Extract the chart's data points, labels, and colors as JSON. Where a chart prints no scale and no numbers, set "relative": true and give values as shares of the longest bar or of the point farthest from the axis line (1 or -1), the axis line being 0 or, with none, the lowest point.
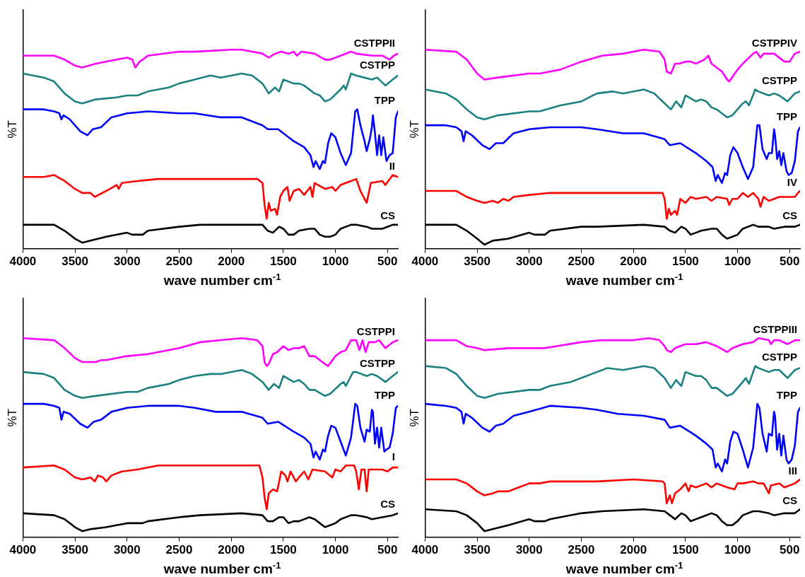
{
  "chart_data": [
    {
      "type": "line",
      "xlabel": "wave number cm$^{-1}$",
      "ylabel": "%T",
      "relative": true,
      "marker": "none",
      "xlim": [
        4000,
        400
      ],
      "xticks": [
        4000,
        3500,
        3000,
        2500,
        2000,
        1500,
        1000,
        500
      ],
      "series": [
        {
          "name": "CSTPPII",
          "color": "#ff00ff",
          "x": [
            4000,
            3800,
            3700,
            3600,
            3500,
            3430,
            3300,
            3100,
            3000,
            2950,
            2920,
            2880,
            2850,
            2800,
            2500,
            2350,
            2000,
            1900,
            1800,
            1700,
            1640,
            1580,
            1520,
            1450,
            1400,
            1370,
            1330,
            1200,
            1100,
            1050,
            950,
            850,
            800,
            650,
            550,
            480,
            440,
            400
          ],
          "values": [
            0.97,
            0.97,
            0.97,
            0.95,
            0.92,
            0.91,
            0.93,
            0.95,
            0.96,
            0.95,
            0.91,
            0.94,
            0.95,
            0.97,
            0.99,
            0.99,
            1.0,
            1.0,
            0.99,
            0.98,
            0.96,
            0.98,
            0.99,
            0.98,
            0.99,
            0.97,
            0.99,
            0.98,
            0.95,
            0.95,
            0.97,
            0.99,
            0.98,
            0.97,
            0.97,
            0.95,
            0.97,
            0.98
          ]
        },
        {
          "name": "CSTPP",
          "color": "#1a8080",
          "x": [
            4000,
            3800,
            3700,
            3600,
            3500,
            3430,
            3300,
            3100,
            3000,
            2900,
            2800,
            2600,
            2500,
            2350,
            2200,
            2100,
            1900,
            1800,
            1700,
            1640,
            1580,
            1540,
            1500,
            1400,
            1350,
            1300,
            1200,
            1150,
            1100,
            1050,
            950,
            920,
            900,
            850,
            800,
            650,
            600,
            520,
            450,
            400
          ],
          "values": [
            0.88,
            0.86,
            0.84,
            0.78,
            0.74,
            0.73,
            0.75,
            0.76,
            0.77,
            0.77,
            0.79,
            0.81,
            0.83,
            0.85,
            0.87,
            0.86,
            0.88,
            0.87,
            0.83,
            0.78,
            0.81,
            0.79,
            0.85,
            0.83,
            0.83,
            0.82,
            0.78,
            0.77,
            0.74,
            0.75,
            0.8,
            0.82,
            0.8,
            0.88,
            0.87,
            0.85,
            0.86,
            0.82,
            0.85,
            0.87
          ]
        },
        {
          "name": "TPP",
          "color": "#0000ff",
          "x": [
            4000,
            3800,
            3700,
            3650,
            3630,
            3610,
            3550,
            3450,
            3380,
            3330,
            3250,
            3150,
            3000,
            2800,
            2500,
            2350,
            2100,
            1900,
            1700,
            1650,
            1550,
            1400,
            1300,
            1240,
            1210,
            1190,
            1150,
            1120,
            1100,
            1070,
            1040,
            1000,
            950,
            900,
            850,
            810,
            790,
            760,
            720,
            700,
            670,
            650,
            640,
            620,
            600,
            580,
            560,
            540,
            510,
            480,
            450,
            420,
            400
          ],
          "values": [
            0.7,
            0.7,
            0.69,
            0.68,
            0.65,
            0.67,
            0.65,
            0.59,
            0.57,
            0.6,
            0.61,
            0.66,
            0.68,
            0.69,
            0.68,
            0.68,
            0.66,
            0.66,
            0.62,
            0.6,
            0.6,
            0.54,
            0.51,
            0.47,
            0.41,
            0.44,
            0.4,
            0.44,
            0.43,
            0.53,
            0.58,
            0.56,
            0.48,
            0.42,
            0.48,
            0.69,
            0.7,
            0.62,
            0.54,
            0.49,
            0.55,
            0.61,
            0.67,
            0.58,
            0.47,
            0.57,
            0.47,
            0.56,
            0.44,
            0.47,
            0.48,
            0.66,
            0.69
          ]
        },
        {
          "name": "II",
          "color": "#ff0000",
          "x": [
            4000,
            3800,
            3700,
            3600,
            3500,
            3430,
            3350,
            3310,
            3200,
            3100,
            3080,
            3050,
            2900,
            2700,
            2350,
            2000,
            1750,
            1700,
            1680,
            1660,
            1640,
            1620,
            1580,
            1560,
            1530,
            1500,
            1460,
            1440,
            1400,
            1350,
            1300,
            1240,
            1220,
            1200,
            1100,
            1030,
            1000,
            950,
            850,
            800,
            760,
            700,
            660,
            550,
            520,
            450,
            400
          ],
          "values": [
            0.36,
            0.36,
            0.37,
            0.34,
            0.3,
            0.28,
            0.28,
            0.26,
            0.29,
            0.32,
            0.3,
            0.33,
            0.34,
            0.35,
            0.35,
            0.35,
            0.35,
            0.33,
            0.22,
            0.15,
            0.23,
            0.19,
            0.2,
            0.17,
            0.26,
            0.29,
            0.31,
            0.24,
            0.29,
            0.3,
            0.27,
            0.31,
            0.26,
            0.33,
            0.3,
            0.31,
            0.29,
            0.32,
            0.34,
            0.35,
            0.29,
            0.23,
            0.33,
            0.34,
            0.32,
            0.37,
            0.36
          ]
        },
        {
          "name": "CS",
          "color": "#000000",
          "x": [
            4000,
            3700,
            3600,
            3500,
            3430,
            3350,
            3200,
            3000,
            2950,
            2900,
            2850,
            2800,
            2500,
            2300,
            1900,
            1700,
            1650,
            1600,
            1540,
            1500,
            1450,
            1400,
            1350,
            1250,
            1200,
            1150,
            1100,
            1050,
            1000,
            950,
            850,
            800,
            700,
            650,
            550,
            450,
            400
          ],
          "values": [
            0.12,
            0.12,
            0.09,
            0.05,
            0.03,
            0.04,
            0.06,
            0.08,
            0.07,
            0.07,
            0.07,
            0.09,
            0.11,
            0.12,
            0.12,
            0.12,
            0.09,
            0.08,
            0.11,
            0.1,
            0.07,
            0.07,
            0.09,
            0.1,
            0.1,
            0.07,
            0.06,
            0.06,
            0.07,
            0.1,
            0.12,
            0.12,
            0.11,
            0.1,
            0.1,
            0.12,
            0.12
          ]
        }
      ]
    },
    {
      "type": "line",
      "xlabel": "wave number cm$^{-1}$",
      "ylabel": "%T",
      "relative": true,
      "marker": "none",
      "xlim": [
        4000,
        400
      ],
      "xticks": [
        4000,
        3500,
        3000,
        2500,
        2000,
        1500,
        1000,
        500
      ],
      "series": [
        {
          "name": "CSTPPIV",
          "color": "#ff00ff",
          "x": [
            4000,
            3700,
            3600,
            3500,
            3430,
            3300,
            3000,
            2900,
            2700,
            2500,
            2300,
            2100,
            1900,
            1750,
            1700,
            1680,
            1640,
            1600,
            1560,
            1500,
            1450,
            1400,
            1320,
            1280,
            1250,
            1150,
            1100,
            1080,
            1000,
            950,
            850,
            820,
            780,
            750,
            650,
            550,
            500,
            450,
            400
          ],
          "values": [
            1.0,
            0.99,
            0.95,
            0.88,
            0.85,
            0.86,
            0.88,
            0.88,
            0.9,
            0.94,
            0.97,
            0.98,
            1.0,
            0.99,
            0.95,
            0.89,
            0.88,
            0.93,
            0.93,
            0.94,
            0.94,
            0.93,
            0.95,
            0.97,
            0.93,
            0.89,
            0.85,
            0.84,
            0.9,
            0.93,
            0.98,
            0.99,
            0.96,
            0.98,
            0.98,
            0.94,
            0.94,
            0.98,
            0.99
          ]
        },
        {
          "name": "CSTPP",
          "color": "#1a8080",
          "x": [
            4000,
            3800,
            3700,
            3600,
            3500,
            3430,
            3300,
            3000,
            2900,
            2700,
            2500,
            2350,
            2200,
            2100,
            1900,
            1800,
            1700,
            1640,
            1590,
            1540,
            1500,
            1400,
            1350,
            1300,
            1250,
            1200,
            1100,
            1050,
            950,
            920,
            890,
            830,
            800,
            700,
            650,
            600,
            520,
            450,
            400
          ],
          "values": [
            0.8,
            0.78,
            0.75,
            0.7,
            0.66,
            0.65,
            0.67,
            0.69,
            0.69,
            0.72,
            0.74,
            0.78,
            0.79,
            0.78,
            0.8,
            0.78,
            0.73,
            0.7,
            0.74,
            0.71,
            0.77,
            0.74,
            0.75,
            0.74,
            0.71,
            0.7,
            0.66,
            0.67,
            0.73,
            0.74,
            0.72,
            0.8,
            0.79,
            0.77,
            0.78,
            0.77,
            0.74,
            0.78,
            0.79
          ]
        },
        {
          "name": "TPP",
          "color": "#0000ff",
          "x": [
            4000,
            3800,
            3700,
            3650,
            3630,
            3610,
            3550,
            3450,
            3380,
            3320,
            3250,
            3150,
            3000,
            2800,
            2500,
            2350,
            2100,
            1900,
            1700,
            1650,
            1550,
            1400,
            1300,
            1240,
            1210,
            1190,
            1150,
            1120,
            1100,
            1070,
            1040,
            1000,
            950,
            900,
            850,
            810,
            790,
            760,
            720,
            700,
            670,
            650,
            640,
            620,
            600,
            580,
            560,
            530,
            510,
            480,
            450,
            420,
            400
          ],
          "values": [
            0.62,
            0.62,
            0.61,
            0.59,
            0.54,
            0.59,
            0.57,
            0.52,
            0.5,
            0.53,
            0.53,
            0.58,
            0.6,
            0.61,
            0.61,
            0.6,
            0.58,
            0.58,
            0.55,
            0.52,
            0.53,
            0.48,
            0.44,
            0.41,
            0.34,
            0.37,
            0.33,
            0.38,
            0.37,
            0.47,
            0.51,
            0.48,
            0.41,
            0.35,
            0.41,
            0.62,
            0.62,
            0.5,
            0.45,
            0.48,
            0.48,
            0.6,
            0.57,
            0.45,
            0.49,
            0.42,
            0.48,
            0.39,
            0.37,
            0.38,
            0.44,
            0.59,
            0.61
          ]
        },
        {
          "name": "IV",
          "color": "#ff0000",
          "x": [
            4000,
            3700,
            3600,
            3500,
            3430,
            3350,
            3300,
            3250,
            3200,
            3150,
            3000,
            2800,
            2350,
            2000,
            1720,
            1700,
            1680,
            1660,
            1640,
            1600,
            1580,
            1550,
            1500,
            1450,
            1400,
            1300,
            1250,
            1200,
            1100,
            1080,
            1050,
            1000,
            950,
            900,
            850,
            800,
            780,
            750,
            700,
            600,
            500,
            450,
            420,
            400
          ],
          "values": [
            0.29,
            0.29,
            0.26,
            0.24,
            0.23,
            0.24,
            0.23,
            0.25,
            0.24,
            0.26,
            0.27,
            0.28,
            0.28,
            0.28,
            0.28,
            0.25,
            0.15,
            0.2,
            0.17,
            0.19,
            0.17,
            0.25,
            0.23,
            0.26,
            0.25,
            0.26,
            0.24,
            0.26,
            0.25,
            0.22,
            0.25,
            0.25,
            0.28,
            0.26,
            0.28,
            0.25,
            0.21,
            0.26,
            0.24,
            0.26,
            0.26,
            0.26,
            0.28,
            0.29
          ]
        },
        {
          "name": "CS",
          "color": "#000000",
          "x": [
            4000,
            3700,
            3600,
            3500,
            3430,
            3350,
            3200,
            3000,
            2950,
            2900,
            2850,
            2800,
            2500,
            2350,
            1900,
            1700,
            1650,
            1600,
            1540,
            1500,
            1450,
            1400,
            1350,
            1250,
            1200,
            1150,
            1100,
            1050,
            1000,
            950,
            850,
            800,
            700,
            650,
            550,
            450,
            400
          ],
          "values": [
            0.12,
            0.12,
            0.09,
            0.05,
            0.02,
            0.04,
            0.05,
            0.08,
            0.07,
            0.07,
            0.07,
            0.09,
            0.11,
            0.11,
            0.12,
            0.11,
            0.09,
            0.08,
            0.11,
            0.1,
            0.07,
            0.08,
            0.09,
            0.1,
            0.1,
            0.07,
            0.05,
            0.06,
            0.07,
            0.1,
            0.12,
            0.11,
            0.11,
            0.1,
            0.11,
            0.11,
            0.12
          ]
        }
      ]
    },
    {
      "type": "line",
      "xlabel": "wave number cm$^{-1}$",
      "ylabel": "%T",
      "relative": true,
      "marker": "none",
      "xlim": [
        4000,
        400
      ],
      "xticks": [
        4000,
        3500,
        3000,
        2500,
        2000,
        1500,
        1000,
        500
      ],
      "series": [
        {
          "name": "CSTPPI",
          "color": "#ff00ff",
          "x": [
            4000,
            3700,
            3600,
            3500,
            3430,
            3300,
            3250,
            3200,
            3000,
            2800,
            2500,
            2300,
            2100,
            1900,
            1750,
            1700,
            1680,
            1660,
            1640,
            1600,
            1560,
            1500,
            1450,
            1400,
            1350,
            1300,
            1250,
            1200,
            1150,
            1100,
            1070,
            1000,
            950,
            900,
            850,
            800,
            770,
            740,
            710,
            680,
            620,
            580,
            520,
            450,
            400
          ],
          "values": [
            1.0,
            0.99,
            0.95,
            0.9,
            0.88,
            0.88,
            0.89,
            0.89,
            0.91,
            0.92,
            0.95,
            0.98,
            0.99,
            1.0,
            0.99,
            0.96,
            0.88,
            0.86,
            0.87,
            0.92,
            0.93,
            0.96,
            0.94,
            0.95,
            0.95,
            0.96,
            0.91,
            0.91,
            0.89,
            0.87,
            0.86,
            0.91,
            0.93,
            0.94,
            0.99,
            0.99,
            0.94,
            0.99,
            0.93,
            0.98,
            0.98,
            0.99,
            0.95,
            0.98,
            0.99
          ]
        },
        {
          "name": "CSTPP",
          "color": "#1a8080",
          "x": [
            4000,
            3800,
            3700,
            3600,
            3500,
            3430,
            3300,
            3000,
            2900,
            2800,
            2600,
            2500,
            2350,
            2200,
            2100,
            1900,
            1800,
            1700,
            1640,
            1590,
            1540,
            1500,
            1400,
            1350,
            1300,
            1250,
            1200,
            1100,
            1050,
            950,
            920,
            900,
            830,
            800,
            700,
            650,
            600,
            520,
            450,
            400
          ],
          "values": [
            0.83,
            0.82,
            0.8,
            0.74,
            0.71,
            0.7,
            0.71,
            0.73,
            0.73,
            0.75,
            0.77,
            0.79,
            0.81,
            0.82,
            0.82,
            0.84,
            0.82,
            0.78,
            0.74,
            0.77,
            0.75,
            0.81,
            0.78,
            0.79,
            0.77,
            0.74,
            0.74,
            0.71,
            0.72,
            0.77,
            0.78,
            0.76,
            0.83,
            0.83,
            0.81,
            0.82,
            0.81,
            0.78,
            0.81,
            0.83
          ]
        },
        {
          "name": "TPP",
          "color": "#0000ff",
          "x": [
            4000,
            3800,
            3700,
            3650,
            3630,
            3610,
            3550,
            3450,
            3380,
            3320,
            3250,
            3150,
            3000,
            2800,
            2500,
            2350,
            2150,
            1900,
            1700,
            1650,
            1550,
            1400,
            1300,
            1240,
            1210,
            1190,
            1150,
            1120,
            1100,
            1070,
            1040,
            1000,
            950,
            900,
            850,
            810,
            790,
            760,
            720,
            700,
            670,
            650,
            640,
            620,
            600,
            580,
            560,
            530,
            510,
            480,
            450,
            420,
            400
          ],
          "values": [
            0.67,
            0.67,
            0.66,
            0.65,
            0.59,
            0.63,
            0.62,
            0.57,
            0.55,
            0.58,
            0.59,
            0.63,
            0.65,
            0.66,
            0.66,
            0.65,
            0.63,
            0.63,
            0.6,
            0.57,
            0.58,
            0.53,
            0.5,
            0.47,
            0.4,
            0.43,
            0.39,
            0.44,
            0.43,
            0.51,
            0.56,
            0.55,
            0.48,
            0.41,
            0.5,
            0.67,
            0.66,
            0.55,
            0.48,
            0.54,
            0.53,
            0.64,
            0.63,
            0.47,
            0.55,
            0.45,
            0.55,
            0.43,
            0.44,
            0.45,
            0.52,
            0.65,
            0.66
          ]
        },
        {
          "name": "I",
          "color": "#ff0000",
          "x": [
            4000,
            3700,
            3600,
            3500,
            3430,
            3350,
            3310,
            3280,
            3230,
            3200,
            3150,
            3050,
            2900,
            2700,
            2350,
            2000,
            1730,
            1700,
            1680,
            1660,
            1640,
            1600,
            1560,
            1520,
            1480,
            1460,
            1430,
            1380,
            1350,
            1300,
            1260,
            1220,
            1100,
            1030,
            1000,
            950,
            900,
            820,
            800,
            775,
            750,
            720,
            700,
            680,
            620,
            550,
            500,
            450,
            400
          ],
          "values": [
            0.35,
            0.36,
            0.34,
            0.3,
            0.29,
            0.3,
            0.28,
            0.31,
            0.3,
            0.28,
            0.31,
            0.33,
            0.34,
            0.36,
            0.36,
            0.36,
            0.36,
            0.3,
            0.2,
            0.14,
            0.22,
            0.24,
            0.23,
            0.33,
            0.31,
            0.28,
            0.33,
            0.28,
            0.3,
            0.33,
            0.29,
            0.34,
            0.33,
            0.3,
            0.34,
            0.33,
            0.36,
            0.36,
            0.33,
            0.24,
            0.34,
            0.34,
            0.23,
            0.34,
            0.34,
            0.34,
            0.33,
            0.35,
            0.35
          ]
        },
        {
          "name": "CS",
          "color": "#000000",
          "x": [
            4000,
            3700,
            3600,
            3500,
            3430,
            3350,
            3200,
            3000,
            2950,
            2900,
            2850,
            2800,
            2500,
            2300,
            1900,
            1700,
            1650,
            1600,
            1540,
            1500,
            1450,
            1400,
            1350,
            1250,
            1200,
            1150,
            1100,
            1050,
            1000,
            950,
            850,
            800,
            700,
            650,
            550,
            450,
            400
          ],
          "values": [
            0.12,
            0.11,
            0.09,
            0.05,
            0.03,
            0.04,
            0.05,
            0.07,
            0.07,
            0.07,
            0.07,
            0.08,
            0.1,
            0.11,
            0.12,
            0.11,
            0.08,
            0.08,
            0.1,
            0.1,
            0.07,
            0.08,
            0.08,
            0.1,
            0.09,
            0.07,
            0.05,
            0.06,
            0.07,
            0.09,
            0.11,
            0.11,
            0.1,
            0.09,
            0.1,
            0.11,
            0.12
          ]
        }
      ]
    },
    {
      "type": "line",
      "xlabel": "wave number cm$^{-1}$",
      "ylabel": "%T",
      "relative": true,
      "marker": "none",
      "xlim": [
        4000,
        400
      ],
      "xticks": [
        4000,
        3500,
        3000,
        2500,
        2000,
        1500,
        1000,
        500
      ],
      "series": [
        {
          "name": "CSTPPIII",
          "color": "#ff00ff",
          "x": [
            4000,
            3700,
            3600,
            3500,
            3430,
            3200,
            3000,
            2950,
            2920,
            2850,
            2500,
            2300,
            2000,
            1850,
            1750,
            1700,
            1680,
            1640,
            1600,
            1500,
            1400,
            1300,
            1250,
            1200,
            1100,
            1050,
            950,
            850,
            800,
            700,
            680,
            650,
            600,
            520,
            450,
            400
          ],
          "values": [
            0.99,
            0.99,
            0.96,
            0.95,
            0.94,
            0.95,
            0.95,
            0.95,
            0.95,
            0.95,
            0.98,
            0.99,
            0.99,
            1.0,
            0.99,
            0.96,
            0.94,
            0.93,
            0.95,
            0.97,
            0.97,
            0.98,
            0.97,
            0.96,
            0.93,
            0.95,
            0.97,
            0.98,
            1.0,
            0.99,
            0.97,
            0.99,
            0.99,
            0.97,
            0.99,
            0.99
          ]
        },
        {
          "name": "CSTPP",
          "color": "#1a8080",
          "x": [
            4000,
            3800,
            3700,
            3600,
            3500,
            3430,
            3300,
            3000,
            2900,
            2800,
            2600,
            2500,
            2350,
            2250,
            2100,
            1900,
            1800,
            1700,
            1640,
            1590,
            1540,
            1500,
            1400,
            1350,
            1300,
            1250,
            1200,
            1100,
            1050,
            950,
            920,
            890,
            830,
            800,
            700,
            650,
            600,
            520,
            450,
            400
          ],
          "values": [
            0.86,
            0.85,
            0.82,
            0.76,
            0.71,
            0.7,
            0.72,
            0.74,
            0.74,
            0.76,
            0.78,
            0.8,
            0.83,
            0.85,
            0.84,
            0.86,
            0.85,
            0.8,
            0.75,
            0.79,
            0.76,
            0.83,
            0.81,
            0.81,
            0.79,
            0.75,
            0.75,
            0.71,
            0.72,
            0.78,
            0.8,
            0.77,
            0.86,
            0.85,
            0.83,
            0.84,
            0.84,
            0.8,
            0.84,
            0.85
          ]
        },
        {
          "name": "TPP",
          "color": "#0000ff",
          "x": [
            4000,
            3800,
            3700,
            3650,
            3630,
            3610,
            3550,
            3450,
            3380,
            3320,
            3250,
            3150,
            3000,
            2800,
            2500,
            2350,
            2150,
            1900,
            1700,
            1650,
            1550,
            1400,
            1300,
            1240,
            1210,
            1190,
            1150,
            1120,
            1100,
            1070,
            1040,
            1000,
            950,
            900,
            850,
            810,
            790,
            760,
            720,
            700,
            670,
            650,
            640,
            620,
            600,
            580,
            560,
            530,
            510,
            480,
            450,
            420,
            400
          ],
          "values": [
            0.67,
            0.66,
            0.65,
            0.63,
            0.57,
            0.62,
            0.6,
            0.55,
            0.53,
            0.56,
            0.57,
            0.61,
            0.63,
            0.66,
            0.65,
            0.64,
            0.62,
            0.61,
            0.59,
            0.55,
            0.56,
            0.51,
            0.47,
            0.44,
            0.35,
            0.37,
            0.33,
            0.39,
            0.37,
            0.48,
            0.53,
            0.52,
            0.44,
            0.35,
            0.45,
            0.67,
            0.65,
            0.52,
            0.43,
            0.52,
            0.51,
            0.63,
            0.61,
            0.44,
            0.52,
            0.41,
            0.51,
            0.39,
            0.37,
            0.39,
            0.46,
            0.63,
            0.65
          ]
        },
        {
          "name": "III",
          "color": "#ff0000",
          "x": [
            4000,
            3700,
            3600,
            3500,
            3430,
            3350,
            3300,
            3200,
            3100,
            3000,
            2950,
            2900,
            2800,
            2350,
            2000,
            1720,
            1700,
            1680,
            1650,
            1630,
            1600,
            1550,
            1500,
            1470,
            1450,
            1400,
            1300,
            1250,
            1200,
            1100,
            1030,
            1000,
            950,
            850,
            800,
            750,
            700,
            680,
            600,
            550,
            450,
            400
          ],
          "values": [
            0.29,
            0.29,
            0.27,
            0.23,
            0.21,
            0.22,
            0.23,
            0.23,
            0.25,
            0.27,
            0.27,
            0.27,
            0.28,
            0.28,
            0.29,
            0.28,
            0.27,
            0.17,
            0.21,
            0.17,
            0.22,
            0.24,
            0.27,
            0.23,
            0.26,
            0.25,
            0.27,
            0.25,
            0.27,
            0.25,
            0.24,
            0.27,
            0.27,
            0.28,
            0.27,
            0.27,
            0.22,
            0.26,
            0.27,
            0.25,
            0.27,
            0.29
          ]
        },
        {
          "name": "CS",
          "color": "#000000",
          "x": [
            4000,
            3700,
            3600,
            3500,
            3430,
            3350,
            3200,
            3000,
            2950,
            2900,
            2850,
            2800,
            2500,
            2300,
            1900,
            1700,
            1650,
            1600,
            1540,
            1500,
            1450,
            1400,
            1350,
            1250,
            1200,
            1150,
            1100,
            1050,
            1000,
            950,
            850,
            800,
            700,
            650,
            550,
            450,
            400
          ],
          "values": [
            0.14,
            0.13,
            0.11,
            0.07,
            0.03,
            0.04,
            0.06,
            0.09,
            0.08,
            0.08,
            0.08,
            0.09,
            0.12,
            0.13,
            0.14,
            0.13,
            0.11,
            0.09,
            0.12,
            0.11,
            0.08,
            0.09,
            0.1,
            0.12,
            0.11,
            0.08,
            0.06,
            0.06,
            0.08,
            0.11,
            0.13,
            0.13,
            0.12,
            0.11,
            0.12,
            0.12,
            0.14
          ]
        }
      ]
    }
  ]
}
